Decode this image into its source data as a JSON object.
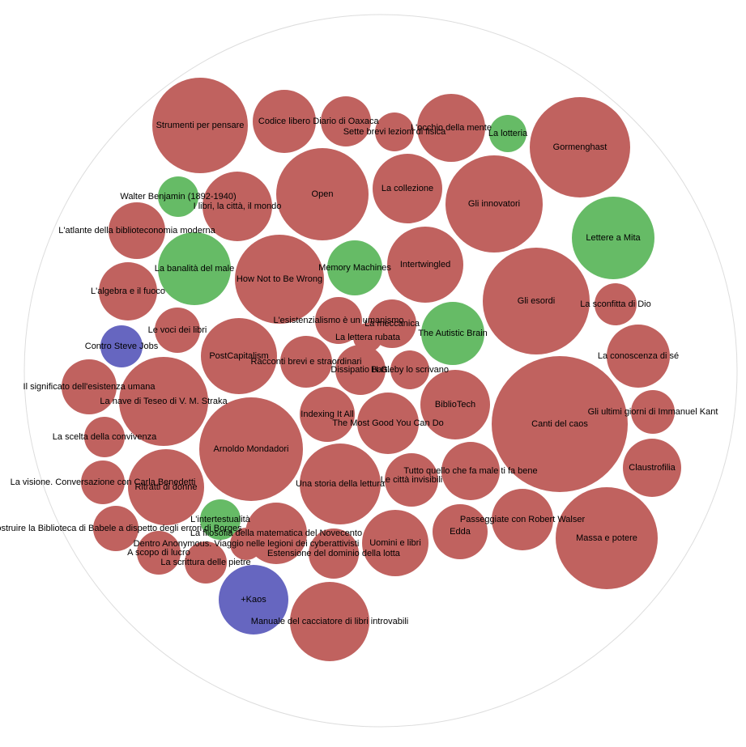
{
  "chart_data": {
    "type": "packed-bubble",
    "items": [
      {
        "label": "Strumenti per pensare",
        "value": 34.81,
        "color": "#c0625f"
      },
      {
        "label": "Codice libero",
        "value": 15.21,
        "color": "#c0625f"
      },
      {
        "label": "Diario di Oaxaca",
        "value": 9.61,
        "color": "#c0625f"
      },
      {
        "label": "Sette brevi lezioni di fisica",
        "value": 5.76,
        "color": "#c0625f"
      },
      {
        "label": "L'occhio della mente",
        "value": 17.64,
        "color": "#c0625f"
      },
      {
        "label": "La lotteria",
        "value": 5.29,
        "color": "#66bb66"
      },
      {
        "label": "Gormenghast",
        "value": 38.44,
        "color": "#c0625f"
      },
      {
        "label": "Walter Benjamin (1892-1940)",
        "value": 6.25,
        "color": "#66bb66"
      },
      {
        "label": "I libri, la città, il mondo",
        "value": 18.49,
        "color": "#c0625f"
      },
      {
        "label": "Open",
        "value": 32.49,
        "color": "#c0625f"
      },
      {
        "label": "La collezione",
        "value": 18.49,
        "color": "#c0625f"
      },
      {
        "label": "Gli innovatori",
        "value": 36,
        "color": "#c0625f"
      },
      {
        "label": "L'atlante della biblioteconomia moderna",
        "value": 12.25,
        "color": "#c0625f"
      },
      {
        "label": "Lettere a Mita",
        "value": 26.01,
        "color": "#66bb66"
      },
      {
        "label": "La banalità del male",
        "value": 20.25,
        "color": "#66bb66"
      },
      {
        "label": "How Not to Be Wrong",
        "value": 30.25,
        "color": "#c0625f"
      },
      {
        "label": "Memory Machines",
        "value": 11.56,
        "color": "#66bb66"
      },
      {
        "label": "Intertwingled",
        "value": 22.09,
        "color": "#c0625f"
      },
      {
        "label": "Gli esordi",
        "value": 43.56,
        "color": "#c0625f"
      },
      {
        "label": "L'algebra e il fuoco",
        "value": 12.96,
        "color": "#c0625f"
      },
      {
        "label": "La sconfitta di Dio",
        "value": 6.76,
        "color": "#c0625f"
      },
      {
        "label": "L'esistenzialismo è un umanismo",
        "value": 8.41,
        "color": "#c0625f"
      },
      {
        "label": "La meccanica",
        "value": 9,
        "color": "#c0625f"
      },
      {
        "label": "The Autistic Brain",
        "value": 15.21,
        "color": "#66bb66"
      },
      {
        "label": "Le voci dei libri",
        "value": 7.84,
        "color": "#c0625f"
      },
      {
        "label": "Contro Steve Jobs",
        "value": 6.76,
        "color": "#6666c0"
      },
      {
        "label": "La lettera rubata",
        "value": 3.24,
        "color": "#c0625f"
      },
      {
        "label": "PostCapitalism",
        "value": 22.09,
        "color": "#c0625f"
      },
      {
        "label": "Racconti brevi e straordinari",
        "value": 10.24,
        "color": "#c0625f"
      },
      {
        "label": "Dissipatio H.G.",
        "value": 9.61,
        "color": "#c0625f"
      },
      {
        "label": "Bartleby lo scrivano",
        "value": 5.76,
        "color": "#c0625f"
      },
      {
        "label": "La conoscenza di sé",
        "value": 15.21,
        "color": "#c0625f"
      },
      {
        "label": "Il significato dell'esistenza umana",
        "value": 11.56,
        "color": "#c0625f"
      },
      {
        "label": "La nave di Teseo di V. M. Straka",
        "value": 30.25,
        "color": "#c0625f"
      },
      {
        "label": "Arnoldo Mondadori",
        "value": 40.96,
        "color": "#c0625f"
      },
      {
        "label": "Indexing It All",
        "value": 11.56,
        "color": "#c0625f"
      },
      {
        "label": "The Most Good You Can Do",
        "value": 14.44,
        "color": "#c0625f"
      },
      {
        "label": "BiblioTech",
        "value": 18.49,
        "color": "#c0625f"
      },
      {
        "label": "Canti del caos",
        "value": 70.56,
        "color": "#c0625f"
      },
      {
        "label": "Gli ultimi giorni di Immanuel Kant",
        "value": 7.29,
        "color": "#c0625f"
      },
      {
        "label": "La scelta della convivenza",
        "value": 6.25,
        "color": "#c0625f"
      },
      {
        "label": "La visione. Conversazione con Carla Benedetti",
        "value": 7.29,
        "color": "#c0625f"
      },
      {
        "label": "Ritratti di donne",
        "value": 22.09,
        "color": "#c0625f"
      },
      {
        "label": "Una storia della lettura",
        "value": 25,
        "color": "#c0625f"
      },
      {
        "label": "Tutto quello che fa male ti fa bene",
        "value": 12.96,
        "color": "#c0625f"
      },
      {
        "label": "Le città invisibili",
        "value": 10.89,
        "color": "#c0625f"
      },
      {
        "label": "Claustrofilia",
        "value": 12.96,
        "color": "#c0625f"
      },
      {
        "label": "Costruire la Biblioteca di Babele a dispetto degli errori di Borges",
        "value": 7.84,
        "color": "#c0625f"
      },
      {
        "label": "L'intertestualità",
        "value": 6.25,
        "color": "#66bb66"
      },
      {
        "label": "La filosofia della matematica del Novecento",
        "value": 14.44,
        "color": "#c0625f"
      },
      {
        "label": "Passeggiate con Robert Walser",
        "value": 14.44,
        "color": "#c0625f"
      },
      {
        "label": "Edda",
        "value": 11.56,
        "color": "#c0625f"
      },
      {
        "label": "Uomini e libri",
        "value": 16.81,
        "color": "#c0625f"
      },
      {
        "label": "Massa e potere",
        "value": 39.69,
        "color": "#c0625f"
      },
      {
        "label": "Dentro Anonymous. Viaggio nelle legioni dei cyberattivisti",
        "value": 4,
        "color": "#c0625f"
      },
      {
        "label": "A scopo di lucro",
        "value": 7.29,
        "color": "#c0625f"
      },
      {
        "label": "La scrittura delle pietre",
        "value": 6.76,
        "color": "#c0625f"
      },
      {
        "label": "Estensione del dominio della lotta",
        "value": 9.61,
        "color": "#c0625f"
      },
      {
        "label": "+Kaos",
        "value": 18.49,
        "color": "#6666c0"
      },
      {
        "label": "Manuale del cacciatore di libri introvabili",
        "value": 24.01,
        "color": "#c0625f"
      }
    ]
  }
}
